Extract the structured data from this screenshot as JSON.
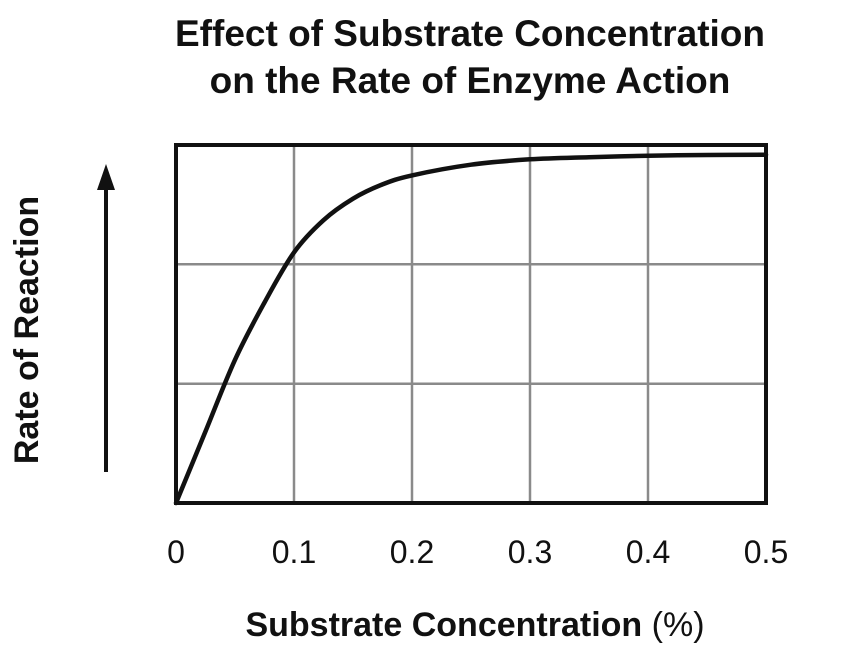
{
  "chart_data": {
    "type": "line",
    "title": [
      "Effect of Substrate Concentration",
      "on the Rate of Enzyme Action"
    ],
    "xlabel": "Substrate Concentration",
    "xlabel_unit": "(%)",
    "ylabel": "Rate of Reaction",
    "xlim": [
      0,
      0.5
    ],
    "ylim": [
      0,
      1
    ],
    "x_ticks": [
      "0",
      "0.1",
      "0.2",
      "0.3",
      "0.4",
      "0.5"
    ],
    "y_gridlines": [
      0.333,
      0.667
    ],
    "grid": true,
    "y_axis_arrow": true,
    "series": [
      {
        "x": [
          0,
          0.025,
          0.05,
          0.075,
          0.1,
          0.125,
          0.15,
          0.175,
          0.2,
          0.25,
          0.3,
          0.35,
          0.4,
          0.45,
          0.5
        ],
        "y": [
          0,
          0.2,
          0.4,
          0.56,
          0.7,
          0.79,
          0.85,
          0.89,
          0.915,
          0.945,
          0.96,
          0.966,
          0.97,
          0.972,
          0.973
        ]
      }
    ]
  }
}
